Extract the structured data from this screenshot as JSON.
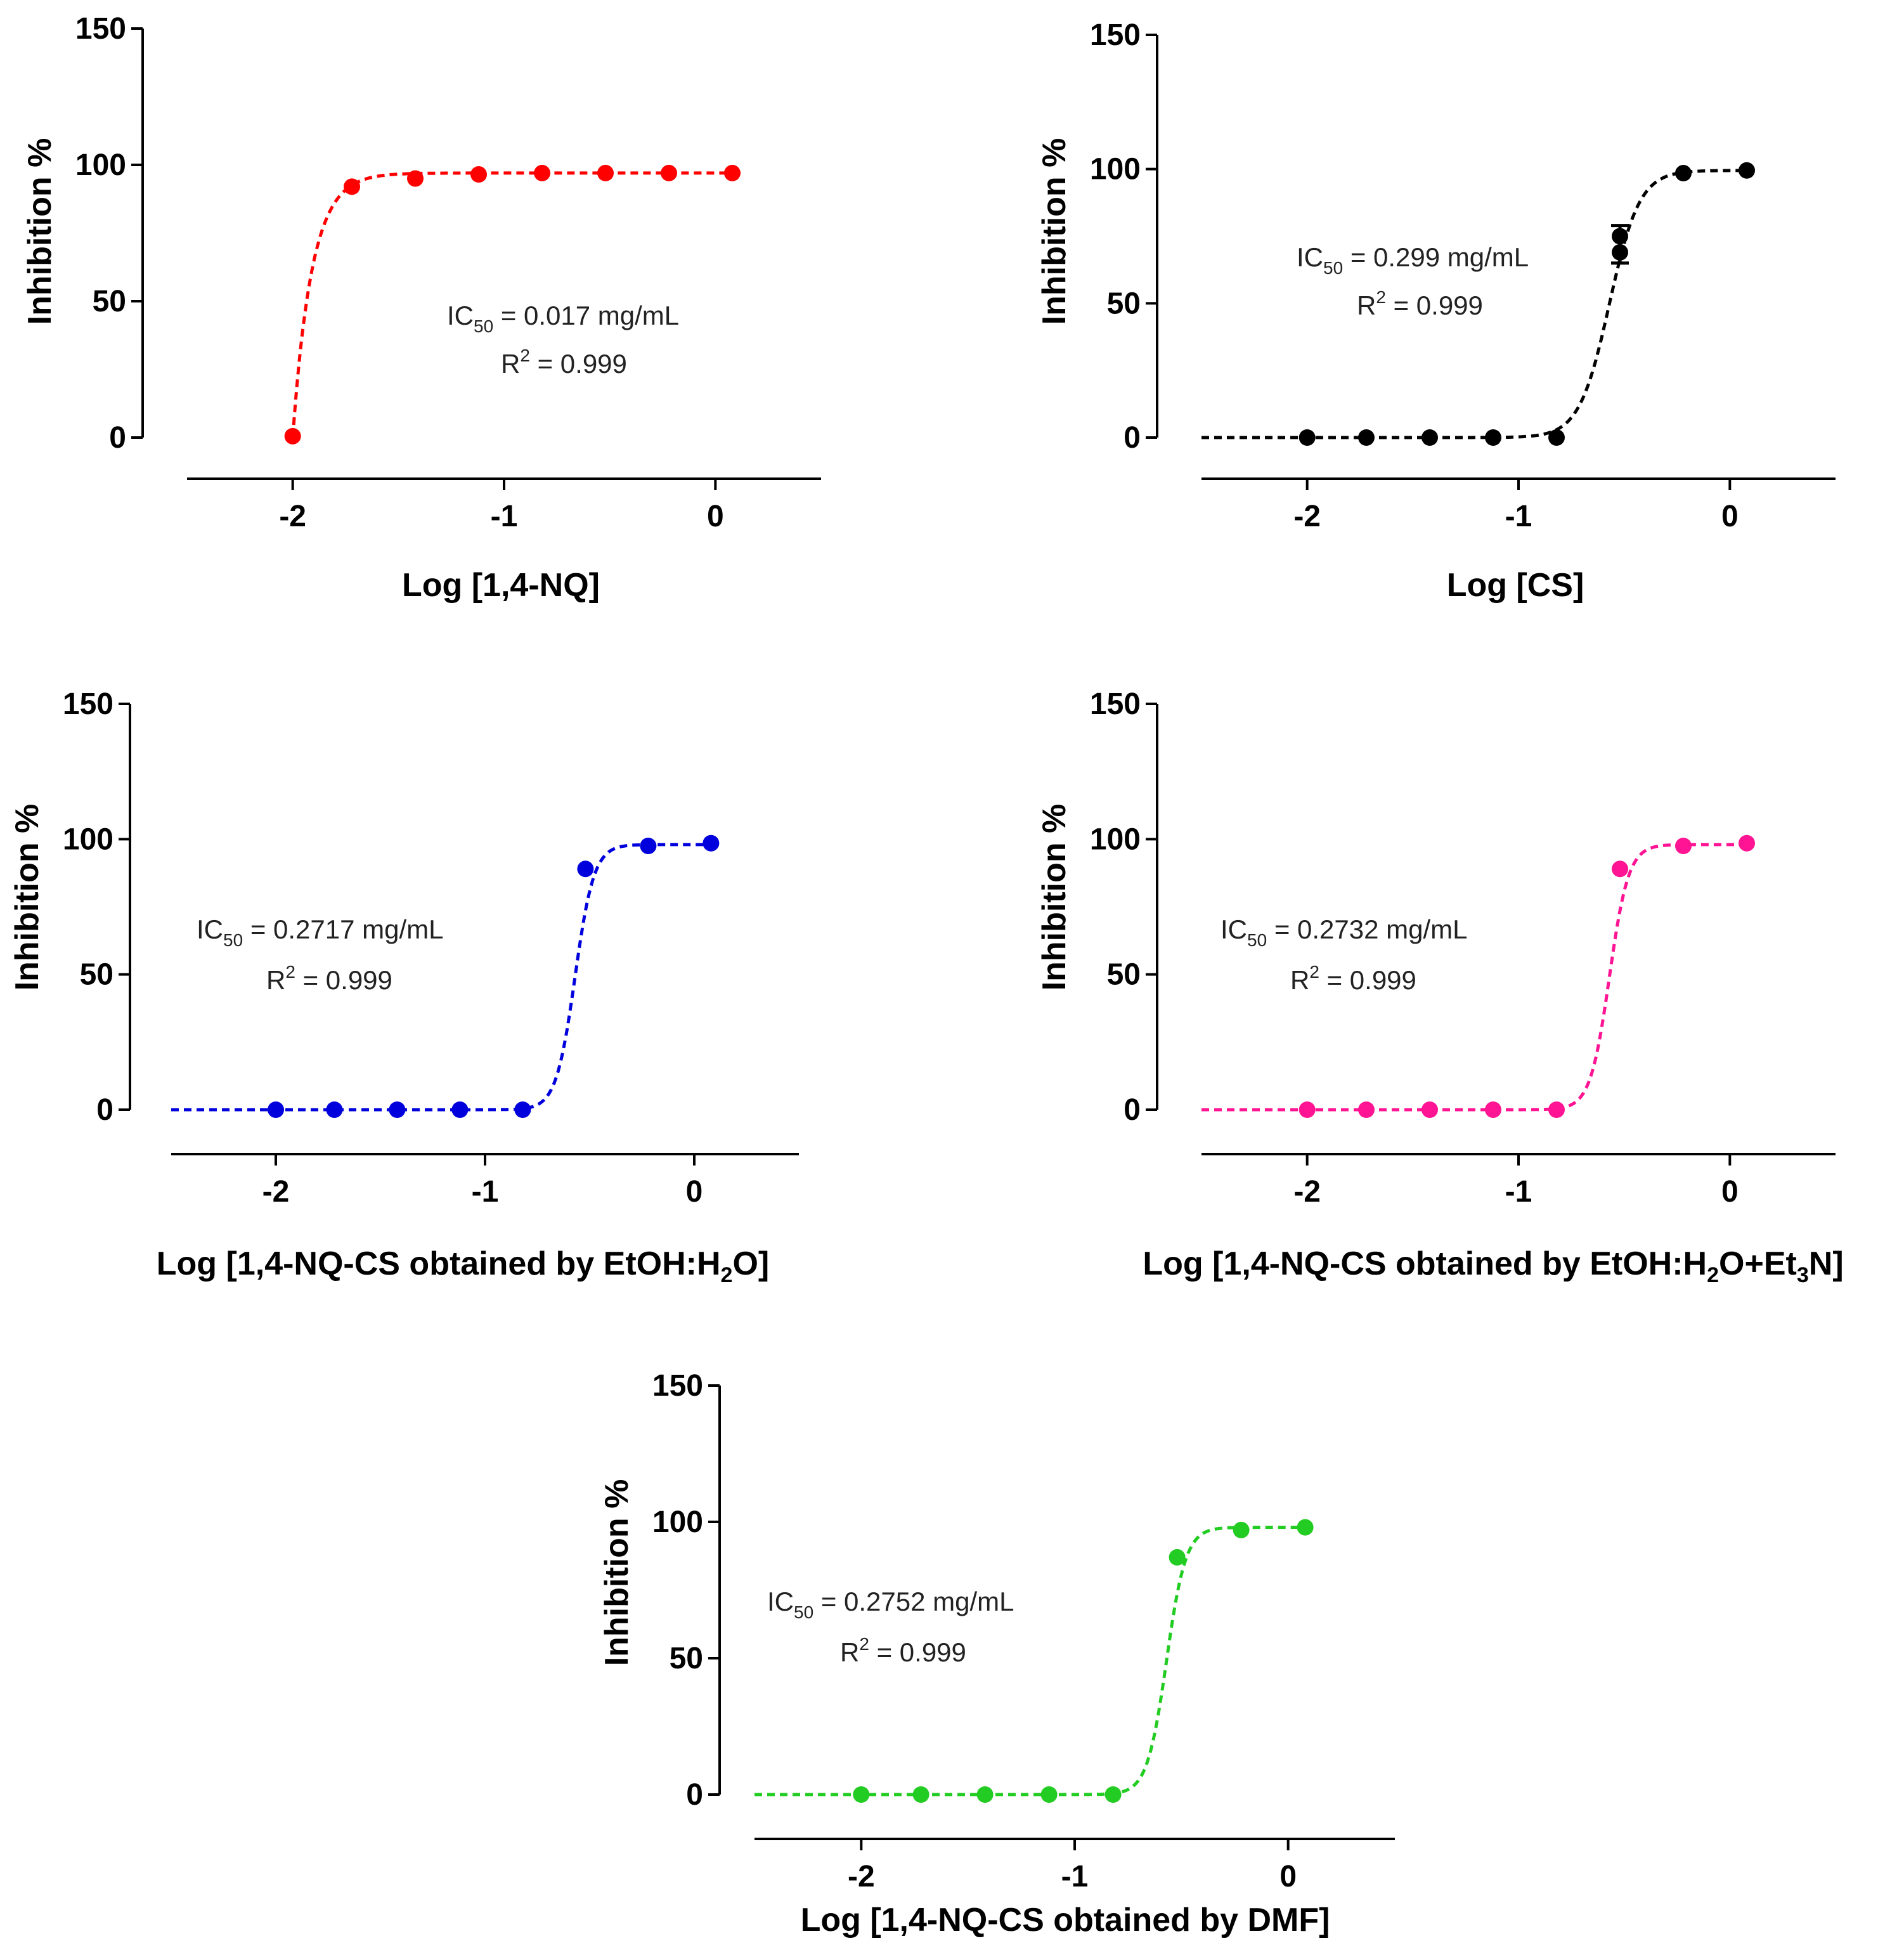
{
  "chart_data": [
    {
      "id": "nq",
      "type": "scatter",
      "color": "#ff0000",
      "xlabel_main": "Log [1,4-NQ]",
      "ylabel": "Inhibition %",
      "x_ticks": [
        -2,
        -1,
        0
      ],
      "y_ticks": [
        0,
        50,
        100,
        150
      ],
      "xlim": [
        -2.5,
        0.5
      ],
      "ylim": [
        0,
        150
      ],
      "x": [
        -2.0,
        -1.72,
        -1.42,
        -1.12,
        -0.82,
        -0.52,
        -0.22,
        0.08
      ],
      "y": [
        0.5,
        92,
        95,
        96.5,
        97,
        97,
        97,
        97
      ],
      "curve": {
        "model": "exp",
        "x0": -2.0,
        "top": 97,
        "k": 11,
        "start": -2.0,
        "end": 0.08
      },
      "ic50_label": "IC",
      "ic50_sub": "50",
      "ic50_value": " = 0.017 mg/mL",
      "r2_label": "R",
      "r2_sup": "2",
      "r2_value": " = 0.999"
    },
    {
      "id": "cs",
      "type": "scatter",
      "color": "#000000",
      "xlabel_main": "Log [CS]",
      "ylabel": "Inhibition %",
      "x_ticks": [
        -2,
        -1,
        0
      ],
      "y_ticks": [
        0,
        50,
        100,
        150
      ],
      "xlim": [
        -2.5,
        0.5
      ],
      "ylim": [
        0,
        150
      ],
      "x": [
        -2.0,
        -1.72,
        -1.42,
        -1.12,
        -0.82,
        -0.52,
        -0.52,
        -0.22,
        0.08
      ],
      "y": [
        0,
        0,
        0,
        0,
        0,
        75,
        69,
        98.5,
        99.5
      ],
      "error_bars": [
        {
          "x": -0.52,
          "low": 65,
          "high": 79
        }
      ],
      "curve": {
        "model": "sigmoid",
        "bottom": 0,
        "top": 99.5,
        "logic50": -0.57,
        "k": 14,
        "start": -2.5,
        "end": 0.08
      },
      "ic50_label": "IC",
      "ic50_sub": "50",
      "ic50_value": " = 0.299 mg/mL",
      "r2_label": "R",
      "r2_sup": "2",
      "r2_value": " = 0.999"
    },
    {
      "id": "etoh",
      "type": "scatter",
      "color": "#0000dd",
      "xlabel_main": "Log [1,4-NQ-CS obtained by EtOH:H",
      "xlabel_sub": "2",
      "xlabel_tail": "O]",
      "ylabel": "Inhibition %",
      "x_ticks": [
        -2,
        -1,
        0
      ],
      "y_ticks": [
        0,
        50,
        100,
        150
      ],
      "xlim": [
        -2.5,
        0.5
      ],
      "ylim": [
        0,
        150
      ],
      "x": [
        -2.0,
        -1.72,
        -1.42,
        -1.12,
        -0.82,
        -0.52,
        -0.22,
        0.08
      ],
      "y": [
        0,
        0,
        0,
        0,
        0,
        89,
        97.5,
        98.5
      ],
      "curve": {
        "model": "sigmoid",
        "bottom": 0,
        "top": 98,
        "logic50": -0.57,
        "k": 22,
        "start": -2.5,
        "end": 0.08
      },
      "ic50_label": "IC",
      "ic50_sub": "50",
      "ic50_value": " = 0.2717 mg/mL",
      "r2_label": "R",
      "r2_sup": "2",
      "r2_value": " = 0.999"
    },
    {
      "id": "et3n",
      "type": "scatter",
      "color": "#ff1493",
      "xlabel_main": "Log [1,4-NQ-CS obtained by EtOH:H",
      "xlabel_sub": "2",
      "xlabel_mid": "O+Et",
      "xlabel_sub2": "3",
      "xlabel_tail": "N]",
      "ylabel": "Inhibition %",
      "x_ticks": [
        -2,
        -1,
        0
      ],
      "y_ticks": [
        0,
        50,
        100,
        150
      ],
      "xlim": [
        -2.5,
        0.5
      ],
      "ylim": [
        0,
        150
      ],
      "x": [
        -2.0,
        -1.72,
        -1.42,
        -1.12,
        -0.82,
        -0.52,
        -0.22,
        0.08
      ],
      "y": [
        0,
        0,
        0,
        0,
        0,
        89,
        97.5,
        98.5
      ],
      "curve": {
        "model": "sigmoid",
        "bottom": 0,
        "top": 98,
        "logic50": -0.57,
        "k": 22,
        "start": -2.5,
        "end": 0.08
      },
      "ic50_label": "IC",
      "ic50_sub": "50",
      "ic50_value": " = 0.2732 mg/mL",
      "r2_label": "R",
      "r2_sup": "2",
      "r2_value": " = 0.999"
    },
    {
      "id": "dmf",
      "type": "scatter",
      "color": "#22cc22",
      "xlabel_main": "Log [1,4-NQ-CS obtained by DMF]",
      "ylabel": "Inhibition %",
      "x_ticks": [
        -2,
        -1,
        0
      ],
      "y_ticks": [
        0,
        50,
        100,
        150
      ],
      "xlim": [
        -2.5,
        0.5
      ],
      "ylim": [
        0,
        150
      ],
      "x": [
        -2.0,
        -1.72,
        -1.42,
        -1.12,
        -0.82,
        -0.52,
        -0.22,
        0.08
      ],
      "y": [
        0,
        0,
        0,
        0,
        0,
        87,
        97,
        98
      ],
      "curve": {
        "model": "sigmoid",
        "bottom": 0,
        "top": 98,
        "logic50": -0.57,
        "k": 22,
        "start": -2.5,
        "end": 0.08
      },
      "ic50_label": "IC",
      "ic50_sub": "50",
      "ic50_value": " = 0.2752 mg/mL",
      "r2_label": "R",
      "r2_sup": "2",
      "r2_value": " = 0.999"
    }
  ]
}
